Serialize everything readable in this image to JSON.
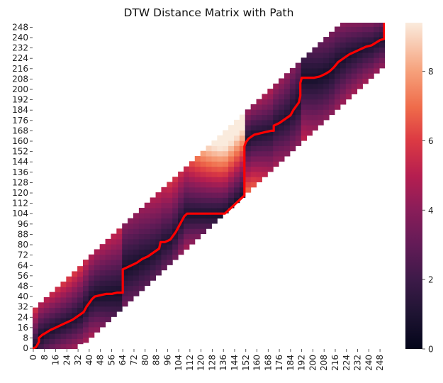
{
  "chart_data": {
    "type": "heatmap",
    "title": "DTW Distance Matrix with Path",
    "xlabel": "",
    "ylabel": "",
    "n": 252,
    "x_tick_labels": [
      "0",
      "8",
      "16",
      "24",
      "32",
      "40",
      "48",
      "56",
      "64",
      "72",
      "80",
      "88",
      "96",
      "104",
      "112",
      "120",
      "128",
      "136",
      "144",
      "152",
      "160",
      "168",
      "176",
      "184",
      "192",
      "200",
      "208",
      "216",
      "224",
      "232",
      "240",
      "248"
    ],
    "y_tick_labels": [
      "0",
      "8",
      "16",
      "24",
      "32",
      "40",
      "48",
      "56",
      "64",
      "72",
      "80",
      "88",
      "96",
      "104",
      "112",
      "120",
      "128",
      "136",
      "144",
      "152",
      "160",
      "168",
      "176",
      "184",
      "192",
      "200",
      "208",
      "216",
      "224",
      "232",
      "240",
      "248"
    ],
    "band_half_width": 31,
    "colorbar": {
      "range": [
        0,
        9.4
      ],
      "tick_labels": [
        "0",
        "2",
        "4",
        "6",
        "8"
      ],
      "tick_values": [
        0,
        2,
        4,
        6,
        8
      ],
      "colormap": "rocket"
    },
    "path_color": "#ff0000",
    "path": [
      [
        0,
        0
      ],
      [
        2,
        1
      ],
      [
        3,
        3
      ],
      [
        4,
        5
      ],
      [
        4,
        8
      ],
      [
        6,
        10
      ],
      [
        9,
        12
      ],
      [
        12,
        14
      ],
      [
        16,
        16
      ],
      [
        20,
        18
      ],
      [
        24,
        20
      ],
      [
        28,
        22
      ],
      [
        32,
        25
      ],
      [
        36,
        28
      ],
      [
        38,
        32
      ],
      [
        40,
        35
      ],
      [
        42,
        38
      ],
      [
        44,
        40
      ],
      [
        48,
        41
      ],
      [
        52,
        42
      ],
      [
        56,
        42
      ],
      [
        60,
        43
      ],
      [
        64,
        43
      ],
      [
        64,
        54
      ],
      [
        64,
        61
      ],
      [
        66,
        62
      ],
      [
        70,
        64
      ],
      [
        74,
        66
      ],
      [
        78,
        69
      ],
      [
        82,
        71
      ],
      [
        86,
        74
      ],
      [
        90,
        77
      ],
      [
        91,
        82
      ],
      [
        94,
        82
      ],
      [
        98,
        84
      ],
      [
        100,
        87
      ],
      [
        102,
        90
      ],
      [
        104,
        94
      ],
      [
        106,
        98
      ],
      [
        108,
        102
      ],
      [
        110,
        104
      ],
      [
        115,
        104
      ],
      [
        120,
        104
      ],
      [
        125,
        104
      ],
      [
        130,
        104
      ],
      [
        134,
        104
      ],
      [
        137,
        104
      ],
      [
        140,
        107
      ],
      [
        143,
        110
      ],
      [
        146,
        113
      ],
      [
        149,
        116
      ],
      [
        151,
        118
      ],
      [
        151,
        124
      ],
      [
        151,
        130
      ],
      [
        151,
        138
      ],
      [
        151,
        145
      ],
      [
        151,
        156
      ],
      [
        152,
        159
      ],
      [
        154,
        162
      ],
      [
        158,
        165
      ],
      [
        162,
        166
      ],
      [
        166,
        167
      ],
      [
        170,
        168
      ],
      [
        172,
        168
      ],
      [
        172,
        172
      ],
      [
        176,
        174
      ],
      [
        180,
        177
      ],
      [
        184,
        180
      ],
      [
        186,
        184
      ],
      [
        188,
        187
      ],
      [
        190,
        190
      ],
      [
        191,
        195
      ],
      [
        191,
        205
      ],
      [
        192,
        209
      ],
      [
        197,
        209
      ],
      [
        201,
        209
      ],
      [
        205,
        210
      ],
      [
        209,
        212
      ],
      [
        212,
        214
      ],
      [
        215,
        217
      ],
      [
        218,
        221
      ],
      [
        222,
        224
      ],
      [
        226,
        227
      ],
      [
        230,
        229
      ],
      [
        234,
        231
      ],
      [
        238,
        233
      ],
      [
        242,
        234
      ],
      [
        245,
        236
      ],
      [
        248,
        238
      ],
      [
        251,
        239
      ],
      [
        251,
        243
      ],
      [
        251,
        246
      ],
      [
        251,
        249
      ],
      [
        251,
        251
      ]
    ]
  }
}
